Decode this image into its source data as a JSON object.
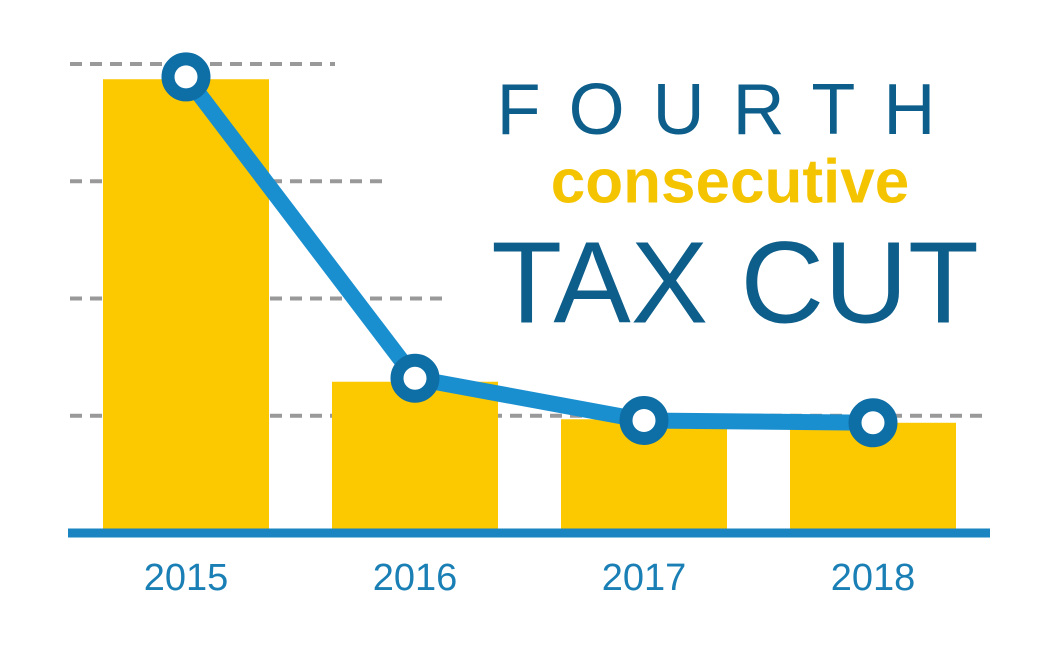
{
  "chart_data": {
    "type": "bar-line",
    "title_lines": [
      "FOURTH",
      "consecutive",
      "TAX CUT"
    ],
    "categories": [
      "2015",
      "2016",
      "2017",
      "2018"
    ],
    "bar_values": [
      3.87,
      1.29,
      0.97,
      0.94
    ],
    "bar_color": "#fcc800",
    "line_values": [
      3.89,
      1.32,
      0.96,
      0.94
    ],
    "line_color": "#1a8fd0",
    "marker_color": "#0e6ea6",
    "ylim": [
      0,
      4
    ],
    "yticks": [
      0,
      1,
      2,
      3,
      4
    ],
    "grid": true
  }
}
